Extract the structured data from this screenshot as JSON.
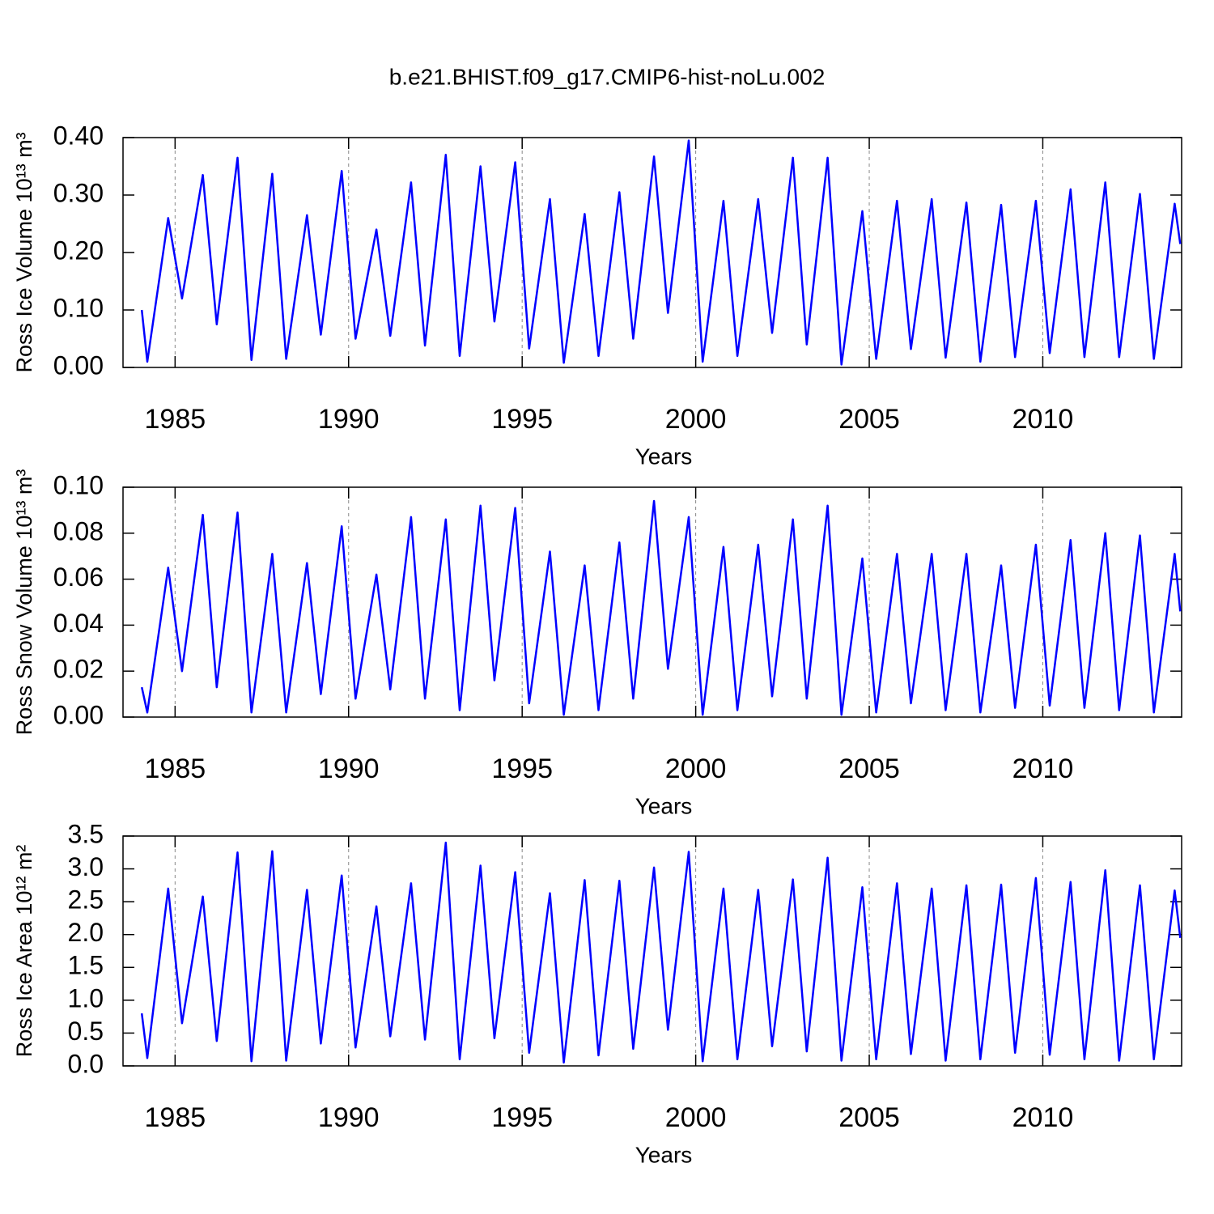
{
  "chart_data": [
    {
      "type": "line",
      "title": "b.e21.BHIST.f09_g17.CMIP6-hist-noLu.002",
      "ylabel": "Ross Ice Volume 10¹³ m³",
      "xlabel": "Years",
      "xlim": [
        1983.5,
        2014.0
      ],
      "xticks": [
        1985,
        1990,
        1995,
        2000,
        2005,
        2010
      ],
      "ylim": [
        0,
        0.4
      ],
      "yticks": [
        {
          "value": 0,
          "label": "0.00"
        },
        {
          "value": 0.1,
          "label": "0.10"
        },
        {
          "value": 0.2,
          "label": "0.20"
        },
        {
          "value": 0.3,
          "label": "0.30"
        },
        {
          "value": 0.4,
          "label": "0.40"
        }
      ],
      "grid": "x",
      "x": [
        1984.04,
        1984.2,
        1984.8,
        1985.2,
        1985.8,
        1986.2,
        1986.8,
        1987.2,
        1987.8,
        1988.2,
        1988.8,
        1989.2,
        1989.8,
        1990.2,
        1990.8,
        1991.2,
        1991.8,
        1992.2,
        1992.8,
        1993.2,
        1993.8,
        1994.2,
        1994.8,
        1995.2,
        1995.8,
        1996.2,
        1996.8,
        1997.2,
        1997.8,
        1998.2,
        1998.8,
        1999.2,
        1999.8,
        2000.2,
        2000.8,
        2001.2,
        2001.8,
        2002.2,
        2002.8,
        2003.2,
        2003.8,
        2004.2,
        2004.8,
        2005.2,
        2005.8,
        2006.2,
        2006.8,
        2007.2,
        2007.8,
        2008.2,
        2008.8,
        2009.2,
        2009.8,
        2010.2,
        2010.8,
        2011.2,
        2011.8,
        2012.2,
        2012.8,
        2013.2,
        2013.8,
        2013.96
      ],
      "series": [
        {
          "color": "#0000ff",
          "values": [
            0.1,
            0.01,
            0.26,
            0.12,
            0.335,
            0.075,
            0.365,
            0.013,
            0.337,
            0.015,
            0.265,
            0.057,
            0.342,
            0.05,
            0.24,
            0.055,
            0.322,
            0.038,
            0.37,
            0.02,
            0.35,
            0.08,
            0.357,
            0.033,
            0.293,
            0.008,
            0.267,
            0.02,
            0.305,
            0.05,
            0.367,
            0.095,
            0.395,
            0.01,
            0.29,
            0.02,
            0.293,
            0.06,
            0.365,
            0.04,
            0.365,
            0.005,
            0.272,
            0.015,
            0.29,
            0.032,
            0.293,
            0.017,
            0.287,
            0.01,
            0.283,
            0.018,
            0.29,
            0.025,
            0.31,
            0.018,
            0.322,
            0.018,
            0.302,
            0.015,
            0.285,
            0.215
          ]
        }
      ]
    },
    {
      "type": "line",
      "ylabel": "Ross Snow Volume 10¹³ m³",
      "xlabel": "Years",
      "xlim": [
        1983.5,
        2014.0
      ],
      "xticks": [
        1985,
        1990,
        1995,
        2000,
        2005,
        2010
      ],
      "ylim": [
        0,
        0.1
      ],
      "yticks": [
        {
          "value": 0,
          "label": "0.00"
        },
        {
          "value": 0.02,
          "label": "0.02"
        },
        {
          "value": 0.04,
          "label": "0.04"
        },
        {
          "value": 0.06,
          "label": "0.06"
        },
        {
          "value": 0.08,
          "label": "0.08"
        },
        {
          "value": 0.1,
          "label": "0.10"
        }
      ],
      "grid": "x",
      "x": [
        1984.04,
        1984.2,
        1984.8,
        1985.2,
        1985.8,
        1986.2,
        1986.8,
        1987.2,
        1987.8,
        1988.2,
        1988.8,
        1989.2,
        1989.8,
        1990.2,
        1990.8,
        1991.2,
        1991.8,
        1992.2,
        1992.8,
        1993.2,
        1993.8,
        1994.2,
        1994.8,
        1995.2,
        1995.8,
        1996.2,
        1996.8,
        1997.2,
        1997.8,
        1998.2,
        1998.8,
        1999.2,
        1999.8,
        2000.2,
        2000.8,
        2001.2,
        2001.8,
        2002.2,
        2002.8,
        2003.2,
        2003.8,
        2004.2,
        2004.8,
        2005.2,
        2005.8,
        2006.2,
        2006.8,
        2007.2,
        2007.8,
        2008.2,
        2008.8,
        2009.2,
        2009.8,
        2010.2,
        2010.8,
        2011.2,
        2011.8,
        2012.2,
        2012.8,
        2013.2,
        2013.8,
        2013.96
      ],
      "series": [
        {
          "color": "#0000ff",
          "values": [
            0.013,
            0.002,
            0.065,
            0.02,
            0.088,
            0.013,
            0.089,
            0.002,
            0.071,
            0.002,
            0.067,
            0.01,
            0.083,
            0.008,
            0.062,
            0.012,
            0.087,
            0.008,
            0.086,
            0.003,
            0.092,
            0.016,
            0.091,
            0.006,
            0.072,
            0.001,
            0.066,
            0.003,
            0.076,
            0.008,
            0.094,
            0.021,
            0.087,
            0.001,
            0.074,
            0.003,
            0.075,
            0.009,
            0.086,
            0.008,
            0.092,
            0.001,
            0.069,
            0.002,
            0.071,
            0.006,
            0.071,
            0.003,
            0.071,
            0.002,
            0.066,
            0.004,
            0.075,
            0.005,
            0.077,
            0.004,
            0.08,
            0.003,
            0.079,
            0.002,
            0.071,
            0.046
          ]
        }
      ]
    },
    {
      "type": "line",
      "ylabel": "Ross Ice Area 10¹² m²",
      "xlabel": "Years",
      "xlim": [
        1983.5,
        2014.0
      ],
      "xticks": [
        1985,
        1990,
        1995,
        2000,
        2005,
        2010
      ],
      "ylim": [
        0,
        3.5
      ],
      "yticks": [
        {
          "value": 0,
          "label": "0.0"
        },
        0.5,
        {
          "value": 1,
          "label": "1.0"
        },
        1.5,
        {
          "value": 2,
          "label": "2.0"
        },
        2.5,
        {
          "value": 3,
          "label": "3.0"
        },
        3.5
      ],
      "grid": "x",
      "x": [
        1984.04,
        1984.2,
        1984.8,
        1985.2,
        1985.8,
        1986.2,
        1986.8,
        1987.2,
        1987.8,
        1988.2,
        1988.8,
        1989.2,
        1989.8,
        1990.2,
        1990.8,
        1991.2,
        1991.8,
        1992.2,
        1992.8,
        1993.2,
        1993.8,
        1994.2,
        1994.8,
        1995.2,
        1995.8,
        1996.2,
        1996.8,
        1997.2,
        1997.8,
        1998.2,
        1998.8,
        1999.2,
        1999.8,
        2000.2,
        2000.8,
        2001.2,
        2001.8,
        2002.2,
        2002.8,
        2003.2,
        2003.8,
        2004.2,
        2004.8,
        2005.2,
        2005.8,
        2006.2,
        2006.8,
        2007.2,
        2007.8,
        2008.2,
        2008.8,
        2009.2,
        2009.8,
        2010.2,
        2010.8,
        2011.2,
        2011.8,
        2012.2,
        2012.8,
        2013.2,
        2013.8,
        2013.96
      ],
      "series": [
        {
          "color": "#0000ff",
          "values": [
            0.8,
            0.12,
            2.7,
            0.65,
            2.58,
            0.38,
            3.25,
            0.07,
            3.27,
            0.08,
            2.68,
            0.34,
            2.9,
            0.28,
            2.43,
            0.45,
            2.78,
            0.4,
            3.4,
            0.1,
            3.05,
            0.42,
            2.95,
            0.2,
            2.63,
            0.05,
            2.83,
            0.16,
            2.82,
            0.26,
            3.02,
            0.55,
            3.26,
            0.07,
            2.7,
            0.1,
            2.68,
            0.3,
            2.84,
            0.22,
            3.17,
            0.08,
            2.72,
            0.1,
            2.78,
            0.18,
            2.7,
            0.08,
            2.75,
            0.1,
            2.76,
            0.2,
            2.86,
            0.17,
            2.8,
            0.1,
            2.98,
            0.08,
            2.75,
            0.1,
            2.67,
            1.95
          ]
        }
      ]
    }
  ]
}
